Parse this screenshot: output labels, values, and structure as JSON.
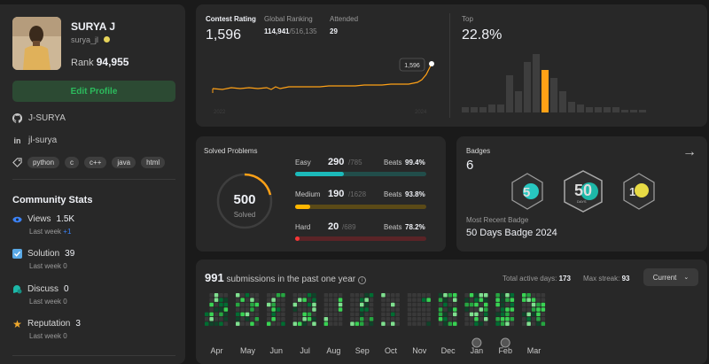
{
  "profile": {
    "name": "SURYA J",
    "handle": "surya_jl",
    "rank_label": "Rank",
    "rank_value": "94,955",
    "edit_button": "Edit Profile",
    "github": "J-SURYA",
    "linkedin": "jl-surya",
    "skills": [
      "python",
      "c",
      "c++",
      "java",
      "html"
    ]
  },
  "community": {
    "title": "Community Stats",
    "stats": [
      {
        "label": "Views",
        "value": "1.5K",
        "sub": "Last week",
        "delta": "+1",
        "color": "#3b82f6"
      },
      {
        "label": "Solution",
        "value": "39",
        "sub": "Last week",
        "delta": "0",
        "color": "#5aa9e6"
      },
      {
        "label": "Discuss",
        "value": "0",
        "sub": "Last week",
        "delta": "0",
        "color": "#1db8a8"
      },
      {
        "label": "Reputation",
        "value": "3",
        "sub": "Last week",
        "delta": "0",
        "color": "#f0a92d"
      }
    ]
  },
  "contest": {
    "rating_label": "Contest Rating",
    "rating_value": "1,596",
    "global_label": "Global Ranking",
    "global_value": "114,941",
    "global_total": "/516,135",
    "attended_label": "Attended",
    "attended_value": "29",
    "top_label": "Top",
    "top_value": "22.8%",
    "tooltip": "1,596",
    "year_start": "2022",
    "year_end": "2024",
    "line_color": "#ffa116",
    "histogram": [
      2,
      2,
      2,
      3,
      3,
      14,
      8,
      19,
      22,
      16,
      13,
      8,
      4,
      3,
      2,
      2,
      2,
      2,
      1,
      1,
      1
    ],
    "highlight_index": 9
  },
  "solved": {
    "title": "Solved Problems",
    "total": "500",
    "total_label": "Solved",
    "rows": [
      {
        "label": "Easy",
        "value": "290",
        "total": "/785",
        "beats_label": "Beats",
        "beats": "99.4%",
        "fill": 0.369,
        "color": "#1cbaba",
        "track": "#214d4a"
      },
      {
        "label": "Medium",
        "value": "190",
        "total": "/1628",
        "beats_label": "Beats",
        "beats": "93.8%",
        "fill": 0.117,
        "color": "#ffb700",
        "track": "#5b4a17"
      },
      {
        "label": "Hard",
        "value": "20",
        "total": "/689",
        "beats_label": "Beats",
        "beats": "78.2%",
        "fill": 0.029,
        "color": "#f63737",
        "track": "#5a2427"
      }
    ]
  },
  "badges": {
    "title": "Badges",
    "count": "6",
    "recent_label": "Most Recent Badge",
    "recent_name": "50 Days Badge 2024",
    "days_text": "DAYS",
    "days_number": "50"
  },
  "submissions": {
    "count": "991",
    "label": "submissions in the past one year",
    "active_label": "Total active days:",
    "active_value": "173",
    "streak_label": "Max streak:",
    "streak_value": "93",
    "select_value": "Current",
    "months": [
      "Apr",
      "May",
      "Jun",
      "Jul",
      "Aug",
      "Sep",
      "Oct",
      "Nov",
      "Dec",
      "Jan",
      "Feb",
      "Mar"
    ]
  }
}
